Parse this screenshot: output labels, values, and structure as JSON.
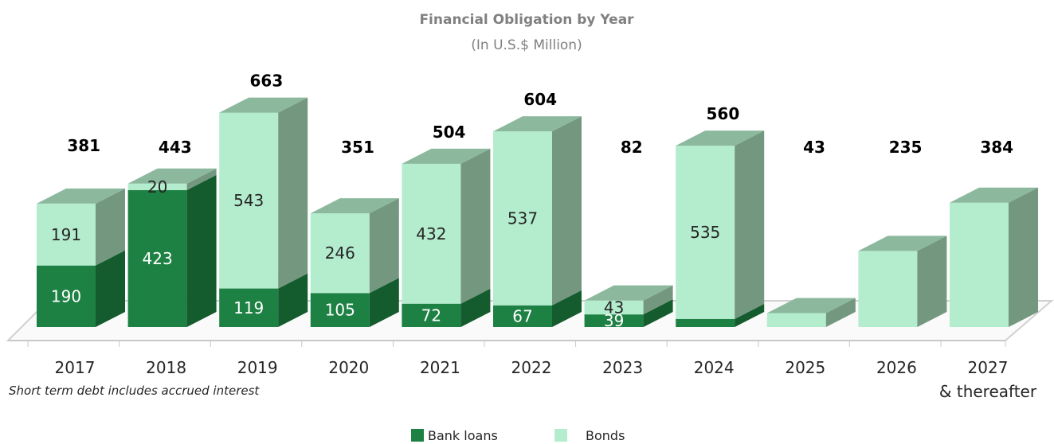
{
  "chart_data": {
    "type": "bar",
    "stacked": true,
    "style": "3d",
    "title": "Financial Obligation by Year",
    "subtitle": "(In U.S.$ Million)",
    "categories": [
      "2017",
      "2018",
      "2019",
      "2020",
      "2021",
      "2022",
      "2023",
      "2024",
      "2025",
      "2026",
      "2027"
    ],
    "category_sublabels": [
      "",
      "",
      "",
      "",
      "",
      "",
      "",
      "",
      "",
      "",
      "& thereafter"
    ],
    "series": [
      {
        "name": "Bank loans",
        "values": [
          190,
          423,
          119,
          105,
          72,
          67,
          39,
          25,
          0,
          0,
          0
        ],
        "color": "#1e8144",
        "value_labels": [
          "190",
          "423",
          "119",
          "105",
          "72",
          "67",
          "39",
          "",
          "",
          "",
          ""
        ]
      },
      {
        "name": "Bonds",
        "values": [
          191,
          20,
          543,
          246,
          432,
          537,
          43,
          535,
          43,
          235,
          384
        ],
        "color": "#b4ecce",
        "value_labels": [
          "191",
          "20",
          "543",
          "246",
          "432",
          "537",
          "43",
          "535",
          "",
          "",
          ""
        ]
      }
    ],
    "totals": [
      "381",
      "443",
      "663",
      "351",
      "504",
      "604",
      "82",
      "560",
      "43",
      "235",
      "384"
    ],
    "legend_position": "bottom",
    "grid": false
  },
  "note": "Short term debt includes accrued interest"
}
